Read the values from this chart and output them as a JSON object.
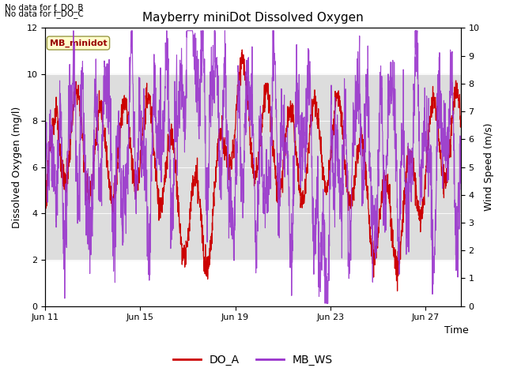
{
  "title": "Mayberry miniDot Dissolved Oxygen",
  "xlabel": "Time",
  "ylabel_left": "Dissolved Oxygen (mg/l)",
  "ylabel_right": "Wind Speed (m/s)",
  "ylim_left": [
    0,
    12
  ],
  "ylim_right": [
    0,
    10
  ],
  "yticks_left": [
    0,
    2,
    4,
    6,
    8,
    10,
    12
  ],
  "yticks_right": [
    0.0,
    1.0,
    2.0,
    3.0,
    4.0,
    5.0,
    6.0,
    7.0,
    8.0,
    9.0,
    10.0
  ],
  "bg_band_ylim": [
    2,
    10
  ],
  "bg_color": "#dddddd",
  "line_color_DO_A": "#cc0000",
  "line_color_MB_WS": "#9933cc",
  "legend_label_DO_A": "DO_A",
  "legend_label_MB_WS": "MB_WS",
  "nodata_text1": "No data for f_DO_B",
  "nodata_text2": "No data for f_DO_C",
  "box_label": "MB_minidot",
  "box_bg": "#ffffcc",
  "box_edge": "#999944",
  "box_text_color": "#990000",
  "xstart_day": 11,
  "xend_day": 28.5,
  "xtick_days": [
    11,
    15,
    19,
    23,
    27
  ],
  "xtick_labels": [
    "Jun 11",
    "Jun 15",
    "Jun 19",
    "Jun 23",
    "Jun 27"
  ],
  "n_points": 2000
}
